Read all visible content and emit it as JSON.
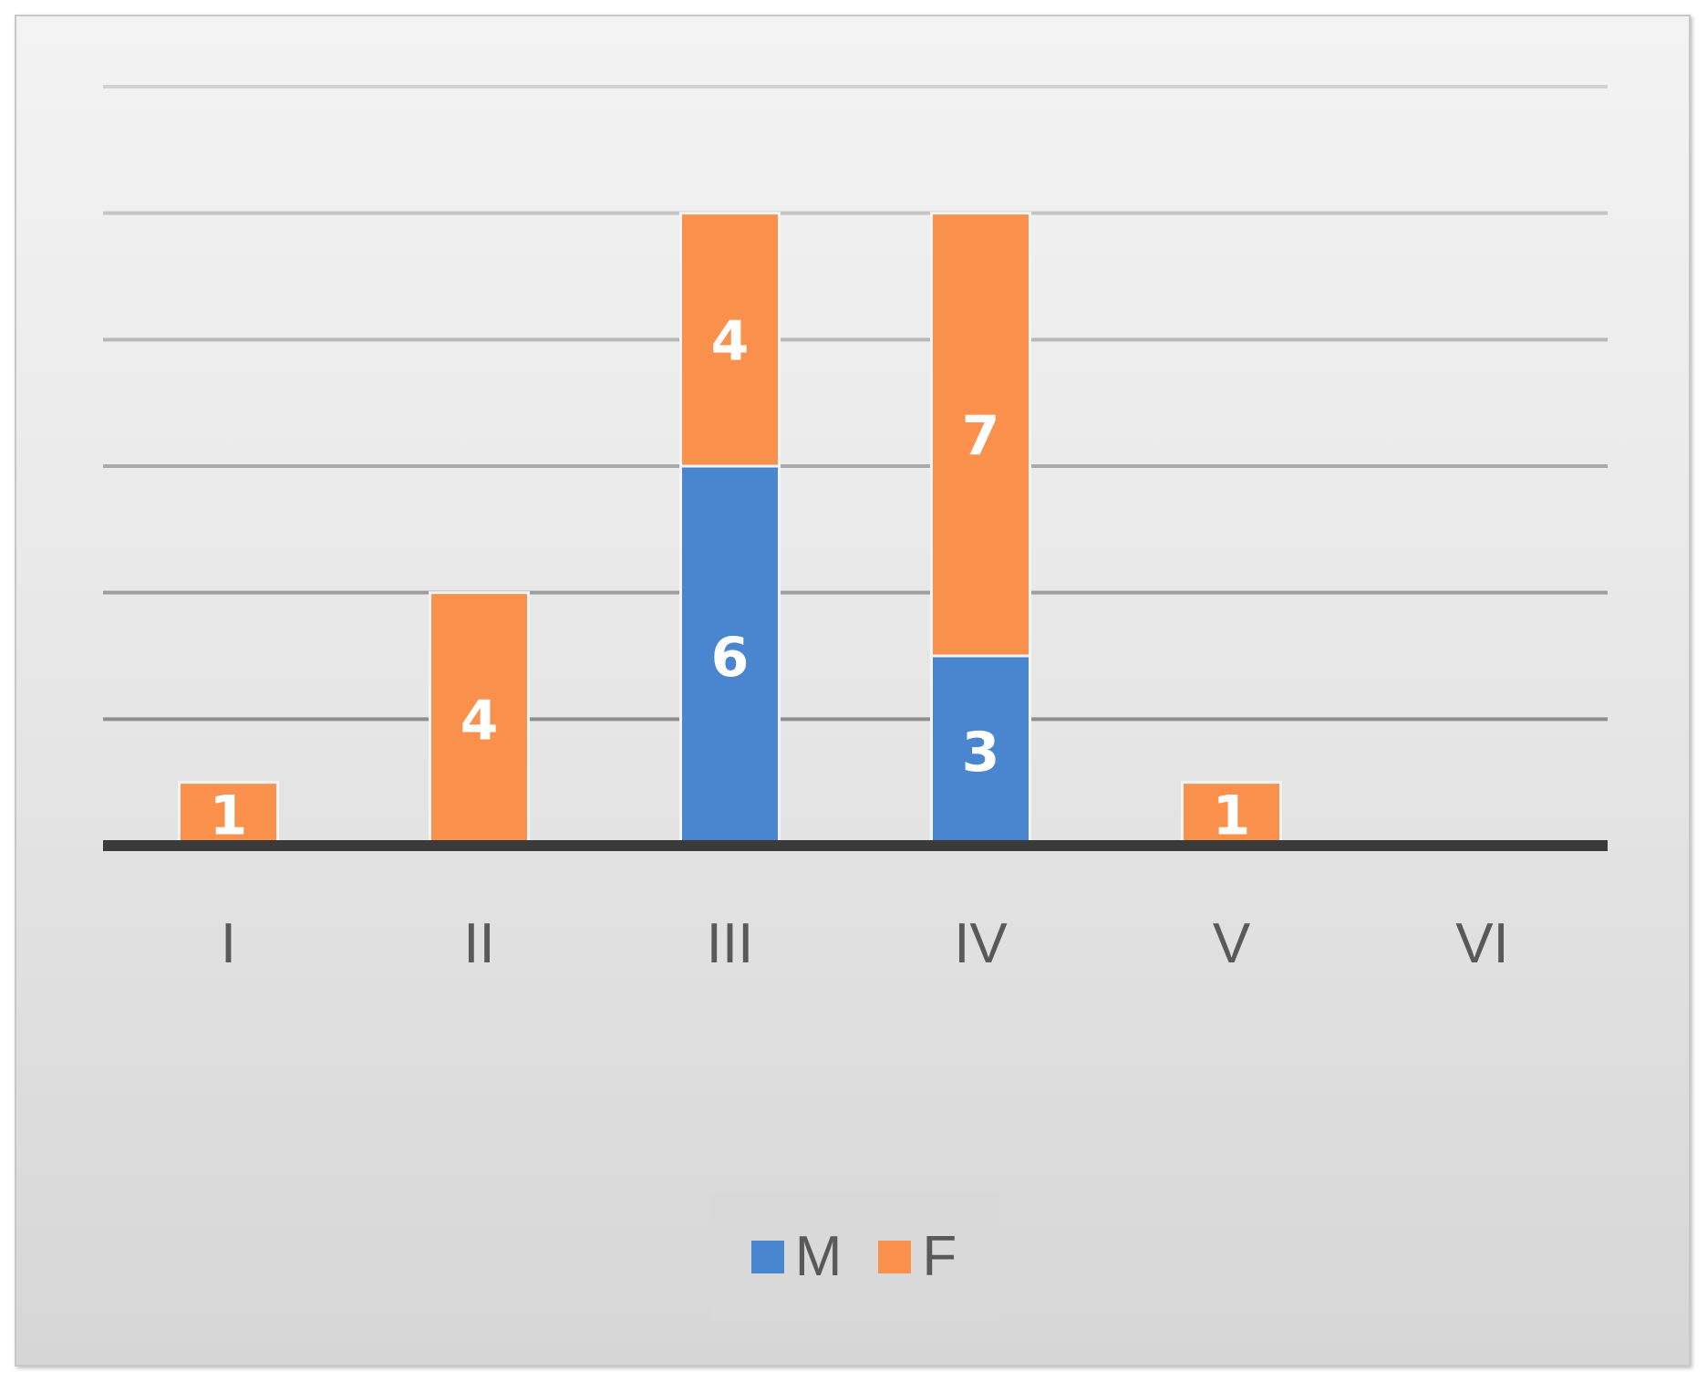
{
  "chart_data": {
    "type": "bar",
    "stacked": true,
    "categories": [
      "I",
      "II",
      "III",
      "IV",
      "V",
      "VI"
    ],
    "series": [
      {
        "name": "M",
        "values": [
          0,
          0,
          6,
          3,
          0,
          0
        ],
        "color": "#4a86cf"
      },
      {
        "name": "F",
        "values": [
          1,
          4,
          4,
          7,
          1,
          0
        ],
        "color": "#f9904b"
      }
    ],
    "ylim": [
      0,
      12
    ],
    "ytick_step": 2,
    "grid": true,
    "legend_position": "bottom",
    "show_y_tick_labels": false,
    "data_labels": true
  }
}
